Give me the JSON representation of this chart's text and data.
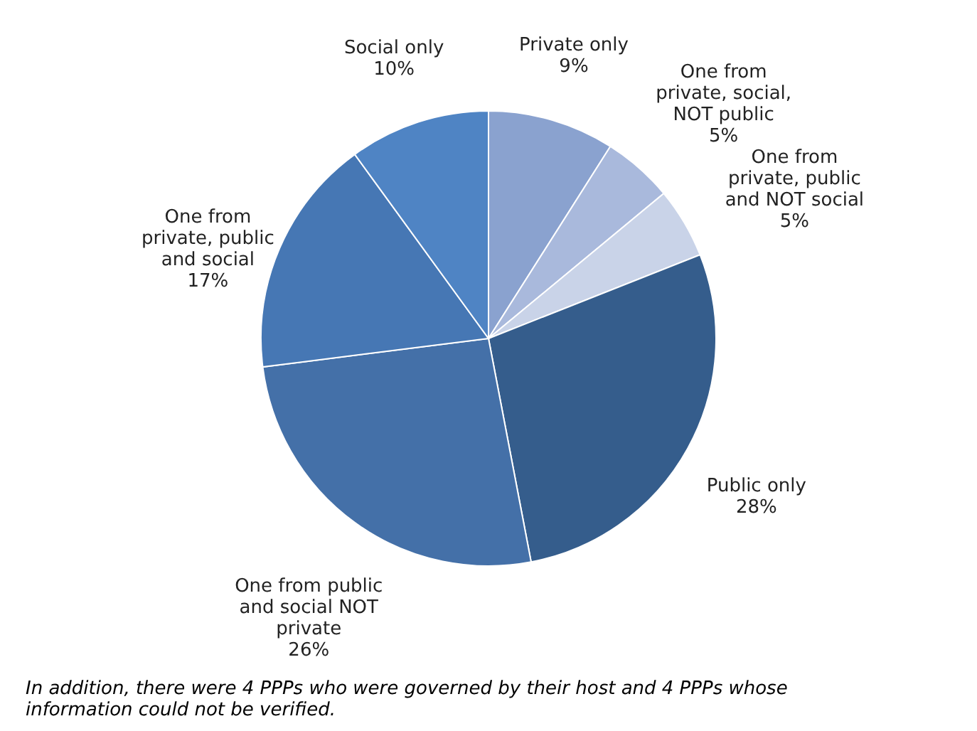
{
  "chart_data": {
    "type": "pie",
    "categories": [
      "Private only",
      "One from private, social, NOT public",
      "One from private, public and NOT social",
      "Public only",
      "One from public and social NOT private",
      "One from private, public and social",
      "Social only"
    ],
    "values": [
      9,
      5,
      5,
      28,
      26,
      17,
      10
    ],
    "colors": [
      "#8aa2cf",
      "#a9b9dc",
      "#c9d3e8",
      "#355d8c",
      "#4470a8",
      "#4677b4",
      "#4f84c4"
    ],
    "value_labels": [
      "9%",
      "5%",
      "5%",
      "28%",
      "26%",
      "17%",
      "10%"
    ],
    "annotations": [
      "In addition, there were 4 PPPs who were governed by their host and 4 PPPs whose information could not be verified."
    ]
  }
}
